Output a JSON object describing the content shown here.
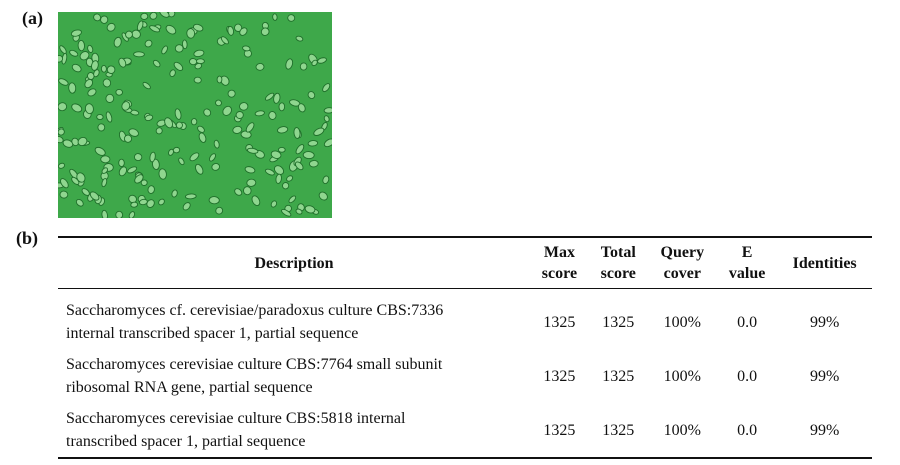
{
  "figure": {
    "panel_a_label": "(a)",
    "panel_b_label": "(b)",
    "micrograph_color": "#3ea84a"
  },
  "table": {
    "headers": [
      {
        "line1": "Description",
        "line2": ""
      },
      {
        "line1": "Max",
        "line2": "score"
      },
      {
        "line1": "Total",
        "line2": "score"
      },
      {
        "line1": "Query",
        "line2": "cover"
      },
      {
        "line1": "E",
        "line2": "value"
      },
      {
        "line1": "Identities",
        "line2": ""
      }
    ],
    "rows": [
      {
        "description_line1": "Saccharomyces cf. cerevisiae/paradoxus culture CBS:7336",
        "description_line2": "internal transcribed spacer 1, partial sequence",
        "max_score": "1325",
        "total_score": "1325",
        "query_cover": "100%",
        "e_value": "0.0",
        "identities": "99%"
      },
      {
        "description_line1": "Saccharomyces cerevisiae culture CBS:7764 small subunit",
        "description_line2": "ribosomal RNA gene, partial sequence",
        "max_score": "1325",
        "total_score": "1325",
        "query_cover": "100%",
        "e_value": "0.0",
        "identities": "99%"
      },
      {
        "description_line1": "Saccharomyces cerevisiae culture CBS:5818 internal",
        "description_line2": "transcribed spacer 1, partial sequence",
        "max_score": "1325",
        "total_score": "1325",
        "query_cover": "100%",
        "e_value": "0.0",
        "identities": "99%"
      }
    ]
  }
}
